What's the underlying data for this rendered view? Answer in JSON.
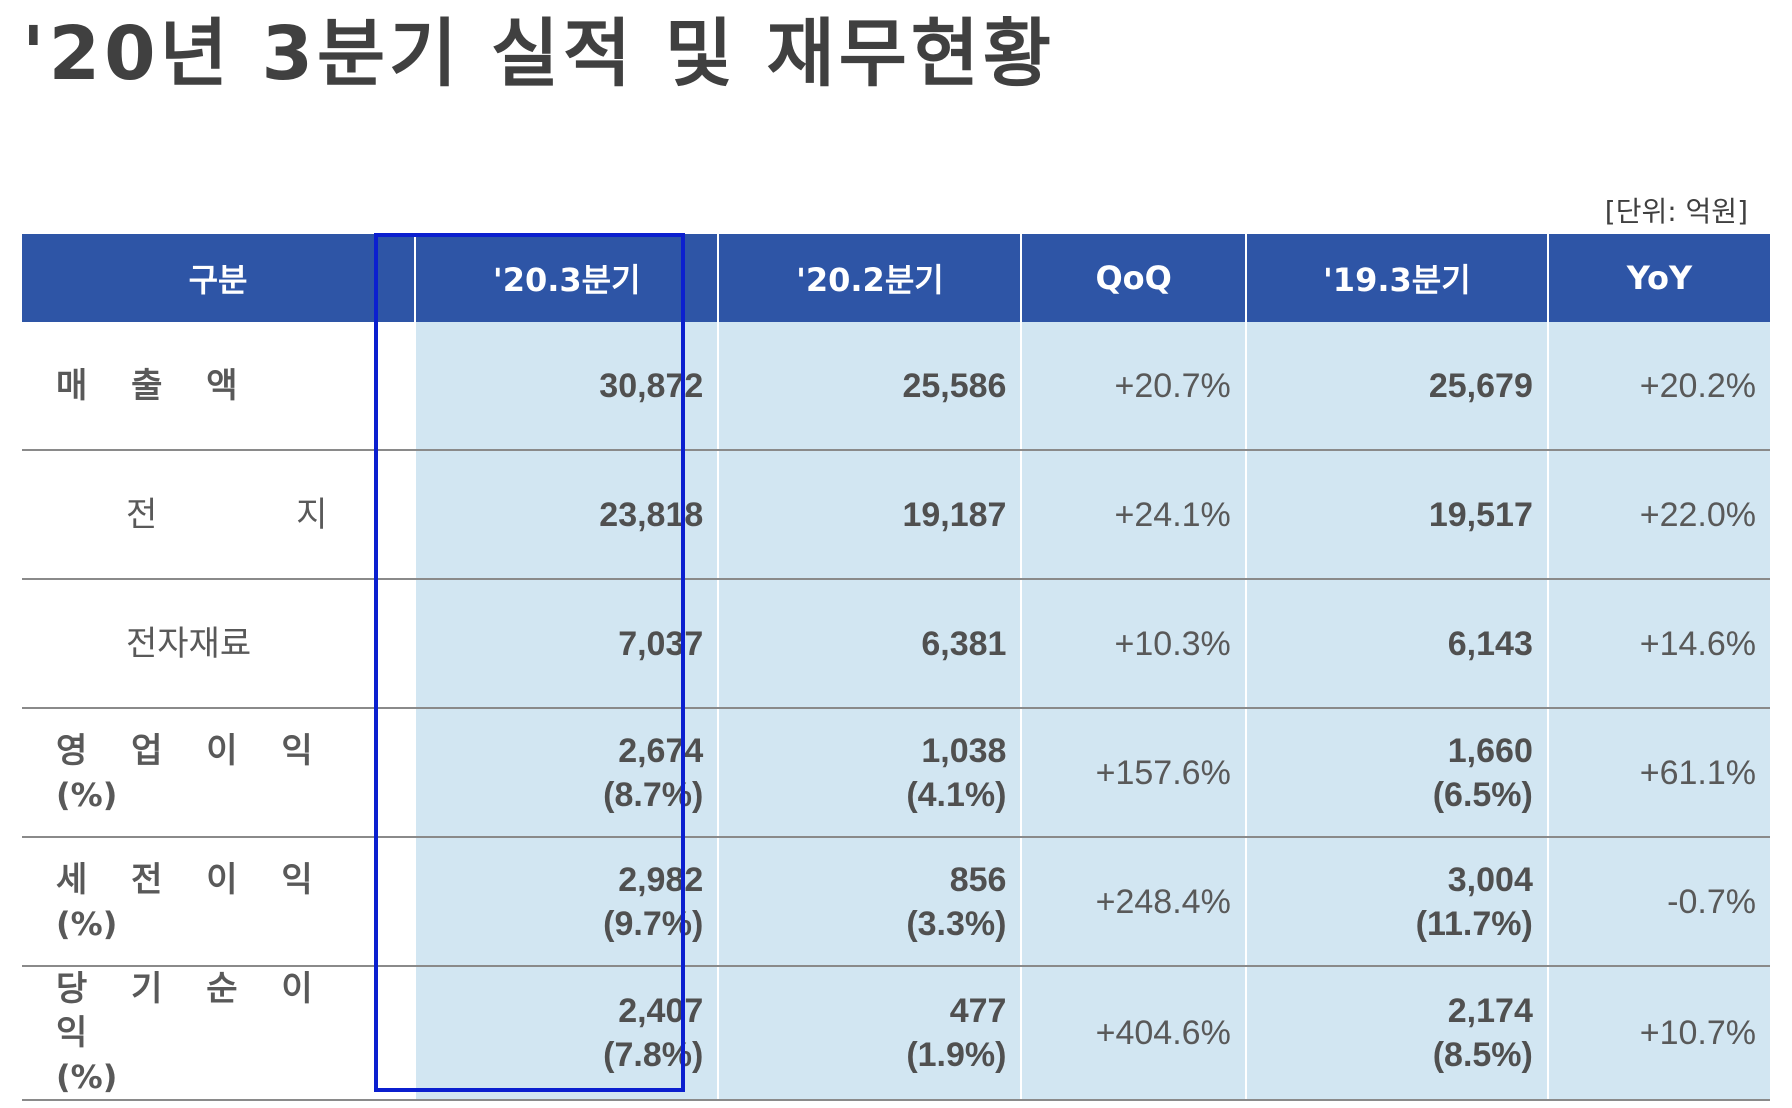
{
  "title": "'20년 3분기 실적 및 재무현황",
  "unit": "[단위: 억원]",
  "colors": {
    "header": "#2e55a6",
    "cell": "#d2e6f2",
    "highlight": "#0b1fcf"
  },
  "headers": [
    "구분",
    "'20.3분기",
    "'20.2분기",
    "QoQ",
    "'19.3분기",
    "YoY"
  ],
  "rows": [
    {
      "label": "매 출 액",
      "sub": "",
      "q3_20": "30,872",
      "q3_20_sub": "",
      "q2_20": "25,586",
      "q2_20_sub": "",
      "qoq": "+20.7%",
      "q3_19": "25,679",
      "q3_19_sub": "",
      "yoy": "+20.2%"
    },
    {
      "label": "전 지",
      "sub": "",
      "q3_20": "23,818",
      "q3_20_sub": "",
      "q2_20": "19,187",
      "q2_20_sub": "",
      "qoq": "+24.1%",
      "q3_19": "19,517",
      "q3_19_sub": "",
      "yoy": "+22.0%"
    },
    {
      "label": "전자재료",
      "sub": "",
      "q3_20": "7,037",
      "q3_20_sub": "",
      "q2_20": "6,381",
      "q2_20_sub": "",
      "qoq": "+10.3%",
      "q3_19": "6,143",
      "q3_19_sub": "",
      "yoy": "+14.6%"
    },
    {
      "label": "영 업 이 익",
      "sub": "(%)",
      "q3_20": "2,674",
      "q3_20_sub": "(8.7%)",
      "q2_20": "1,038",
      "q2_20_sub": "(4.1%)",
      "qoq": "+157.6%",
      "q3_19": "1,660",
      "q3_19_sub": "(6.5%)",
      "yoy": "+61.1%"
    },
    {
      "label": "세 전 이 익",
      "sub": "(%)",
      "q3_20": "2,982",
      "q3_20_sub": "(9.7%)",
      "q2_20": "856",
      "q2_20_sub": "(3.3%)",
      "qoq": "+248.4%",
      "q3_19": "3,004",
      "q3_19_sub": "(11.7%)",
      "yoy": "-0.7%"
    },
    {
      "label": "당 기 순 이 익",
      "sub": "(%)",
      "q3_20": "2,407",
      "q3_20_sub": "(7.8%)",
      "q2_20": "477",
      "q2_20_sub": "(1.9%)",
      "qoq": "+404.6%",
      "q3_19": "2,174",
      "q3_19_sub": "(8.5%)",
      "yoy": "+10.7%"
    }
  ]
}
